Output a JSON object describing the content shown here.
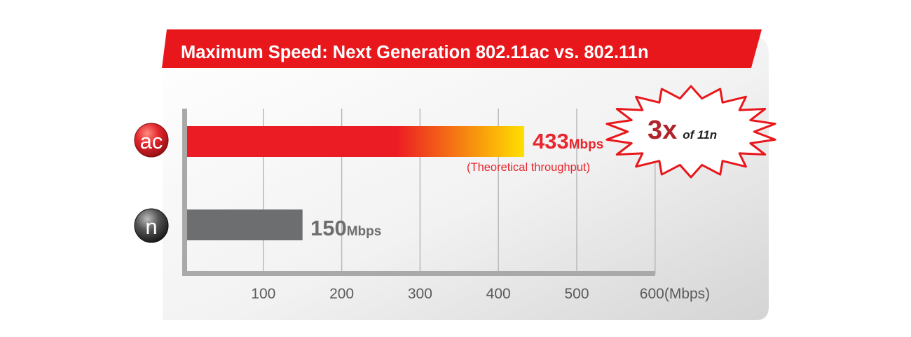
{
  "chart_data": {
    "type": "bar",
    "orientation": "horizontal",
    "title": "Maximum Speed: Next Generation 802.11ac vs. 802.11n",
    "xlabel": "",
    "ylabel": "",
    "xlim": [
      0,
      600
    ],
    "grid": true,
    "x_ticks": [
      {
        "value": 100,
        "label": "100"
      },
      {
        "value": 200,
        "label": "200"
      },
      {
        "value": 300,
        "label": "300"
      },
      {
        "value": 400,
        "label": "400"
      },
      {
        "value": 500,
        "label": "500"
      },
      {
        "value": 600,
        "label": "600(Mbps)"
      }
    ],
    "categories": [
      "ac",
      "n"
    ],
    "values": [
      433,
      150
    ],
    "bars": [
      {
        "category": "ac",
        "value": 433,
        "value_text": "433",
        "unit_text": "Mbps",
        "note": "(Theoretical throughput)"
      },
      {
        "category": "n",
        "value": 150,
        "value_text": "150",
        "unit_text": "Mbps",
        "note": ""
      }
    ],
    "callout": {
      "big": "3x",
      "small": "of 11n"
    }
  },
  "colors": {
    "title_banner": "#e8171c",
    "ac_bar_start": "#ec1c24",
    "ac_bar_end": "#ffe000",
    "ac_label": "#e8262d",
    "n_bar": "#6d6e70",
    "n_label": "#6d6e70",
    "callout_text": "#b0232b",
    "grid": "#b9b9b9",
    "axis": "#a9a9a9",
    "tick_text": "#5a5a5a"
  }
}
